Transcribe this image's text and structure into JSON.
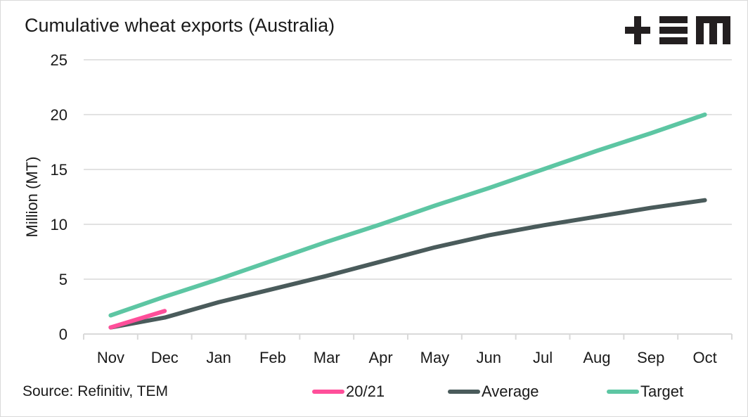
{
  "chart_data": {
    "type": "line",
    "title": "Cumulative wheat exports (Australia)",
    "ylabel": "Million (MT)",
    "xlabel": "",
    "ylim": [
      0,
      25
    ],
    "yticks": [
      0,
      5,
      10,
      15,
      20,
      25
    ],
    "categories": [
      "Nov",
      "Dec",
      "Jan",
      "Feb",
      "Mar",
      "Apr",
      "May",
      "Jun",
      "Jul",
      "Aug",
      "Sep",
      "Oct"
    ],
    "grid": "horizontal",
    "legend_position": "bottom",
    "series": [
      {
        "name": "20/21",
        "color": "#ff4f9a",
        "values": [
          0.6,
          2.1,
          null,
          null,
          null,
          null,
          null,
          null,
          null,
          null,
          null,
          null
        ]
      },
      {
        "name": "Average",
        "color": "#4a5b5b",
        "values": [
          0.6,
          1.5,
          2.9,
          4.1,
          5.3,
          6.6,
          7.9,
          9.0,
          9.9,
          10.7,
          11.5,
          12.2
        ]
      },
      {
        "name": "Target",
        "color": "#5dc6a3",
        "values": [
          1.7,
          3.4,
          5.0,
          6.7,
          8.4,
          10.0,
          11.7,
          13.3,
          15.0,
          16.7,
          18.3,
          20.0
        ]
      }
    ]
  },
  "source": "Source: Refinitiv, TEM",
  "logo_text": "TEM"
}
